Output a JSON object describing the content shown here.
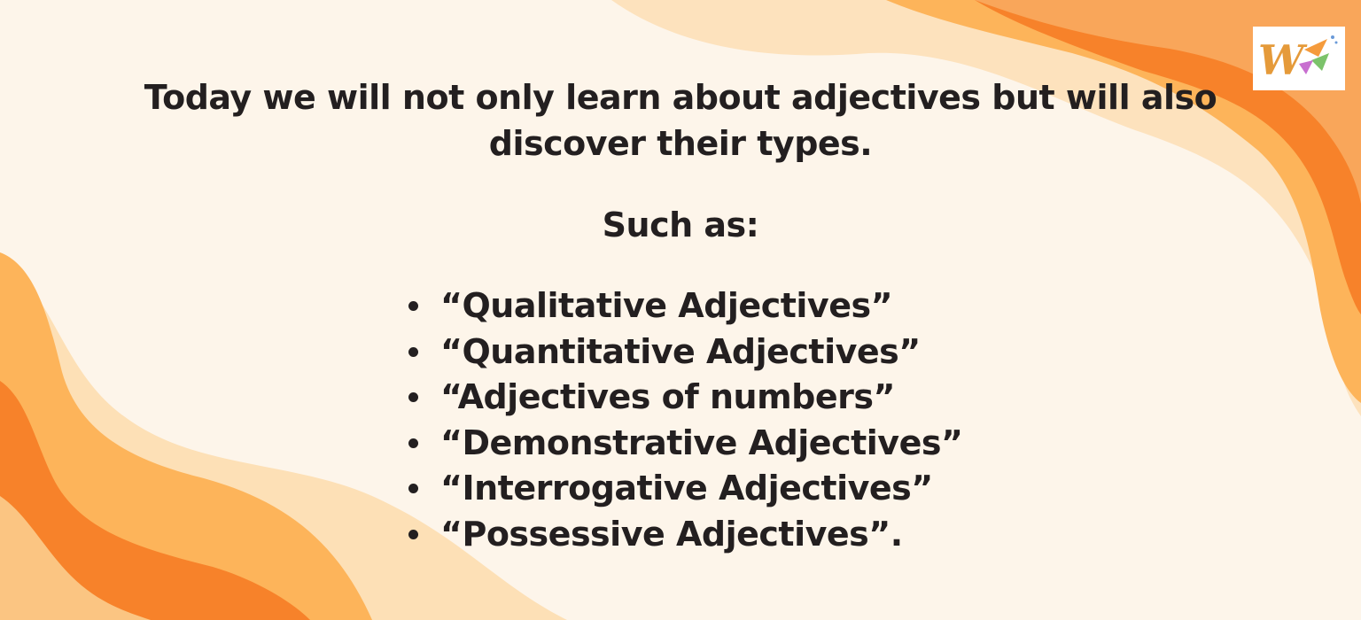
{
  "slide": {
    "intro_text": "Today we will not only learn about adjectives but will also discover their types.",
    "such_as": "Such as:",
    "types": [
      "“Qualitative Adjectives”",
      "“Quantitative Adjectives”",
      "“Adjectives of numbers”",
      "“Demonstrative Adjectives”",
      "“Interrogative Adjectives”",
      "“Possessive Adjectives”."
    ]
  },
  "logo": {
    "icon": "w-logo-icon"
  },
  "colors": {
    "background": "#fdf5ea",
    "wave_light": "#fdd6a0",
    "wave_mid": "#fdb45a",
    "wave_dark": "#f7822a",
    "text": "#231f20"
  }
}
